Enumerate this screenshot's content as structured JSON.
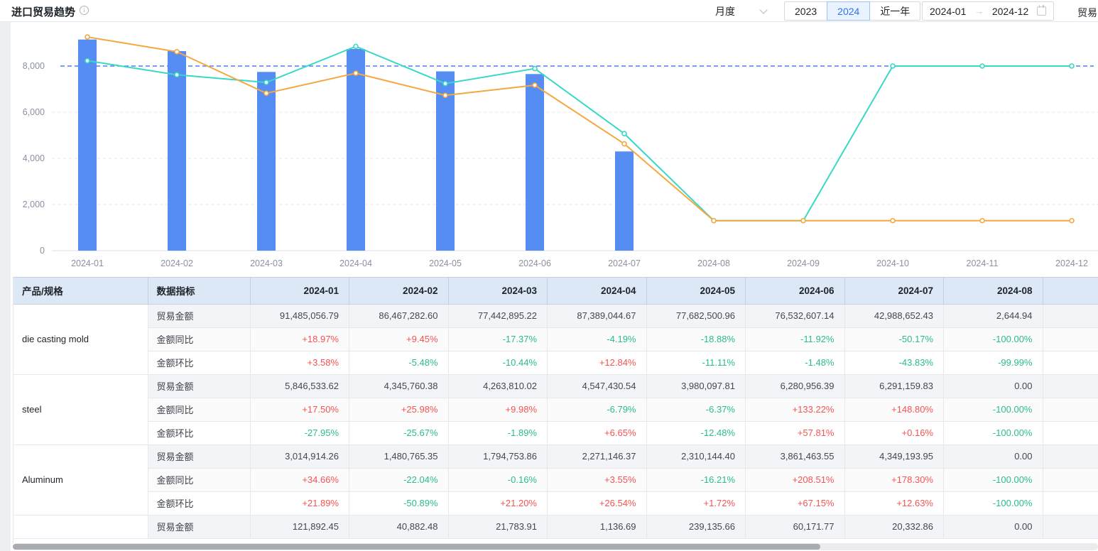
{
  "header": {
    "title": "进口贸易趋势",
    "info_icon": "info-circle",
    "controls": {
      "period_label": "月度",
      "buttons": [
        "2023",
        "2024",
        "近一年"
      ],
      "active_button": "2024",
      "date_start": "2024-01",
      "date_end": "2024-12",
      "trailing_label": "贸易"
    }
  },
  "colors": {
    "bar_blue": "#568df2",
    "line_orange": "#f5a742",
    "line_teal": "#38d8c6",
    "markline_blue": "#4d7ef7",
    "positive_red": "#f75352",
    "negative_green": "#2abd8a",
    "table_header_bg": "#dde8f7",
    "axis_text": "#8a919f"
  },
  "chart_data": {
    "type": "bar",
    "categories": [
      "2024-01",
      "2024-02",
      "2024-03",
      "2024-04",
      "2024-05",
      "2024-06",
      "2024-07",
      "2024-08",
      "2024-09",
      "2024-10",
      "2024-11",
      "2024-12"
    ],
    "series": [
      {
        "name": "bar-series",
        "type": "bar",
        "color": "#568df2",
        "values": [
          9148.5,
          8646.7,
          7744.3,
          8738.9,
          7768.3,
          7653.3,
          4298.9,
          0.3,
          0,
          0,
          0,
          0
        ]
      },
      {
        "name": "line-series-orange",
        "type": "line",
        "color": "#f5a742",
        "values": [
          9260,
          8620,
          6820,
          7690,
          6730,
          7170,
          4630,
          1300,
          1300,
          1300,
          1300,
          1300
        ]
      },
      {
        "name": "line-series-teal",
        "type": "line",
        "color": "#38d8c6",
        "values": [
          8230,
          7620,
          7290,
          8850,
          7240,
          7890,
          5070,
          1300,
          1300,
          8000,
          8000,
          8000
        ]
      }
    ],
    "yticks": [
      0,
      2000,
      4000,
      6000,
      8000
    ],
    "markline": 8000,
    "ylim": [
      0,
      9700
    ],
    "grid": true,
    "legend": "none",
    "title": "",
    "xlabel": "",
    "ylabel": ""
  },
  "table": {
    "col_product": "产品/规格",
    "col_metric": "数据指标",
    "months": [
      "2024-01",
      "2024-02",
      "2024-03",
      "2024-04",
      "2024-05",
      "2024-06",
      "2024-07",
      "2024-08"
    ],
    "metric_labels": {
      "amount": "贸易金额",
      "yoy": "金额同比",
      "mom": "金额环比"
    },
    "groups": [
      {
        "product": "die casting mold",
        "rows": [
          {
            "key": "amount",
            "values": [
              "91,485,056.79",
              "86,467,282.60",
              "77,442,895.22",
              "87,389,044.67",
              "77,682,500.96",
              "76,532,607.14",
              "42,988,652.43",
              "2,644.94"
            ]
          },
          {
            "key": "yoy",
            "values": [
              "+18.97%",
              "+9.45%",
              "-17.37%",
              "-4.19%",
              "-18.88%",
              "-11.92%",
              "-50.17%",
              "-100.00%"
            ]
          },
          {
            "key": "mom",
            "values": [
              "+3.58%",
              "-5.48%",
              "-10.44%",
              "+12.84%",
              "-11.11%",
              "-1.48%",
              "-43.83%",
              "-99.99%"
            ]
          }
        ]
      },
      {
        "product": "steel",
        "rows": [
          {
            "key": "amount",
            "values": [
              "5,846,533.62",
              "4,345,760.38",
              "4,263,810.02",
              "4,547,430.54",
              "3,980,097.81",
              "6,280,956.39",
              "6,291,159.83",
              "0.00"
            ]
          },
          {
            "key": "yoy",
            "values": [
              "+17.50%",
              "+25.98%",
              "+9.98%",
              "-6.79%",
              "-6.37%",
              "+133.22%",
              "+148.80%",
              "-100.00%"
            ]
          },
          {
            "key": "mom",
            "values": [
              "-27.95%",
              "-25.67%",
              "-1.89%",
              "+6.65%",
              "-12.48%",
              "+57.81%",
              "+0.16%",
              "-100.00%"
            ]
          }
        ]
      },
      {
        "product": "Aluminum",
        "rows": [
          {
            "key": "amount",
            "values": [
              "3,014,914.26",
              "1,480,765.35",
              "1,794,753.86",
              "2,271,146.37",
              "2,310,144.40",
              "3,861,463.55",
              "4,349,193.95",
              "0.00"
            ]
          },
          {
            "key": "yoy",
            "values": [
              "+34.66%",
              "-22.04%",
              "-0.16%",
              "+3.55%",
              "-16.21%",
              "+208.51%",
              "+178.30%",
              "-100.00%"
            ]
          },
          {
            "key": "mom",
            "values": [
              "+21.89%",
              "-50.89%",
              "+21.20%",
              "+26.54%",
              "+1.72%",
              "+67.15%",
              "+12.63%",
              "-100.00%"
            ]
          }
        ]
      },
      {
        "product": "",
        "rows": [
          {
            "key": "amount",
            "values": [
              "121,892.45",
              "40,882.48",
              "21,783.91",
              "1,136.69",
              "239,135.66",
              "60,171.77",
              "20,332.86",
              "0.00"
            ]
          }
        ]
      }
    ]
  }
}
